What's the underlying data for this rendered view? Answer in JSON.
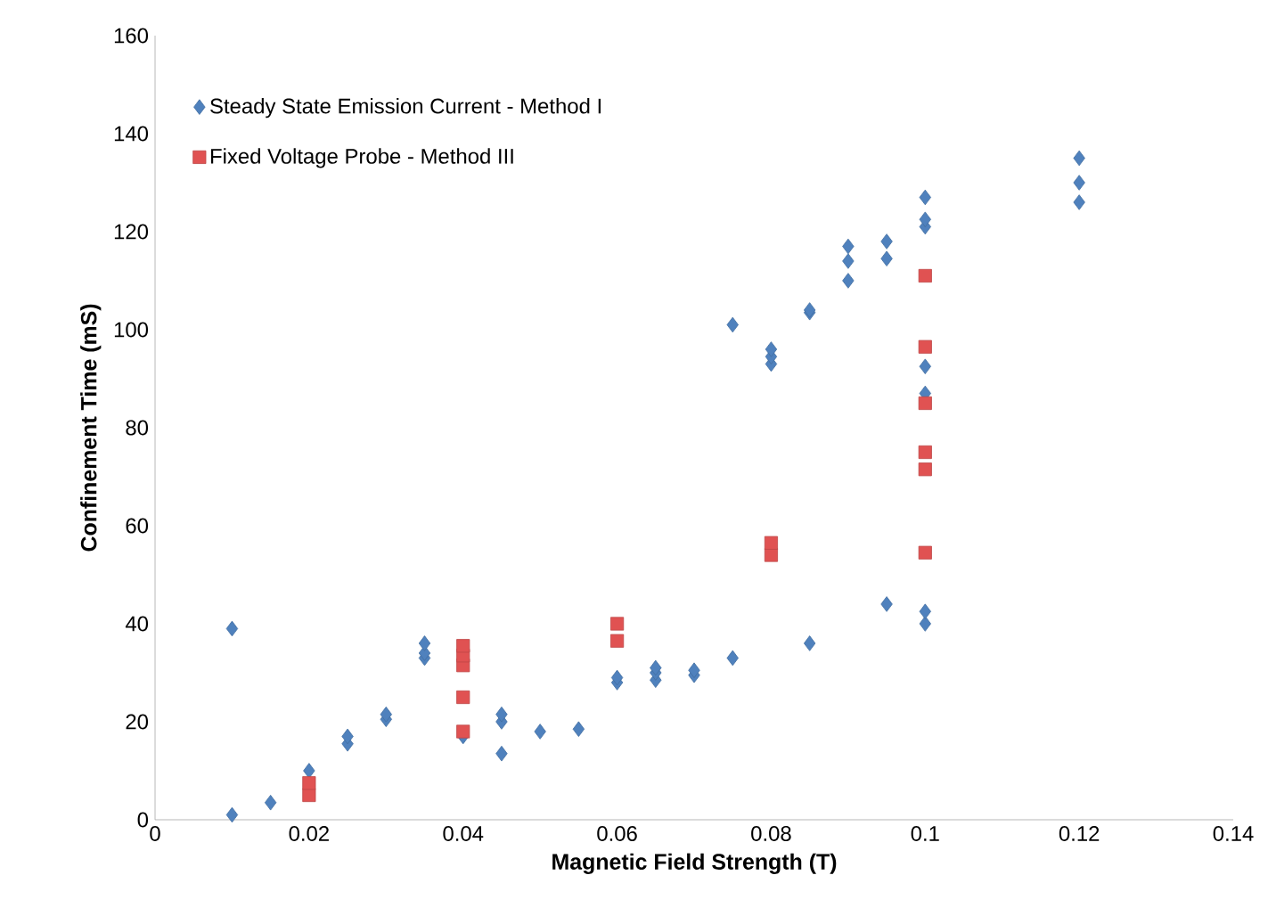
{
  "chart_data": {
    "type": "scatter",
    "xlabel": "Magnetic Field Strength (T)",
    "ylabel": "Confinement Time (mS)",
    "xlim": [
      0,
      0.14
    ],
    "ylim": [
      0,
      160
    ],
    "xticks": [
      0,
      0.02,
      0.04,
      0.06,
      0.08,
      0.1,
      0.12,
      0.14
    ],
    "yticks": [
      0,
      20,
      40,
      60,
      80,
      100,
      120,
      140,
      160
    ],
    "grid": false,
    "legend": "top left",
    "series": [
      {
        "name": "Steady State Emission Current - Method I",
        "color": "#4f81bd",
        "marker": "diamond",
        "x": [
          0.01,
          0.01,
          0.015,
          0.02,
          0.025,
          0.025,
          0.03,
          0.03,
          0.035,
          0.035,
          0.035,
          0.04,
          0.045,
          0.045,
          0.045,
          0.05,
          0.055,
          0.06,
          0.06,
          0.065,
          0.065,
          0.065,
          0.07,
          0.07,
          0.075,
          0.075,
          0.08,
          0.08,
          0.08,
          0.085,
          0.085,
          0.085,
          0.09,
          0.09,
          0.09,
          0.095,
          0.095,
          0.095,
          0.1,
          0.1,
          0.1,
          0.1,
          0.1,
          0.1,
          0.1,
          0.12,
          0.12,
          0.12
        ],
        "values": [
          39,
          1,
          3.5,
          10,
          15.5,
          17,
          20.5,
          21.5,
          33,
          34,
          36,
          17,
          13.5,
          20,
          21.5,
          18,
          18.5,
          28,
          29,
          28.5,
          30,
          31,
          29.5,
          30.5,
          33,
          101,
          93,
          94.5,
          96,
          36,
          103.5,
          104,
          110,
          114,
          117,
          44,
          114.5,
          118,
          40,
          42.5,
          87,
          92.5,
          121,
          122.5,
          127,
          126,
          130,
          135
        ]
      },
      {
        "name": "Fixed Voltage Probe - Method III",
        "color": "#e05252",
        "marker": "square",
        "x": [
          0.02,
          0.02,
          0.04,
          0.04,
          0.04,
          0.04,
          0.04,
          0.06,
          0.06,
          0.08,
          0.08,
          0.1,
          0.1,
          0.1,
          0.1,
          0.1,
          0.1
        ],
        "values": [
          5,
          7.5,
          18,
          25,
          31.5,
          33.5,
          35.5,
          36.5,
          40,
          54,
          56.5,
          54.5,
          71.5,
          75,
          85,
          96.5,
          111
        ]
      }
    ]
  }
}
